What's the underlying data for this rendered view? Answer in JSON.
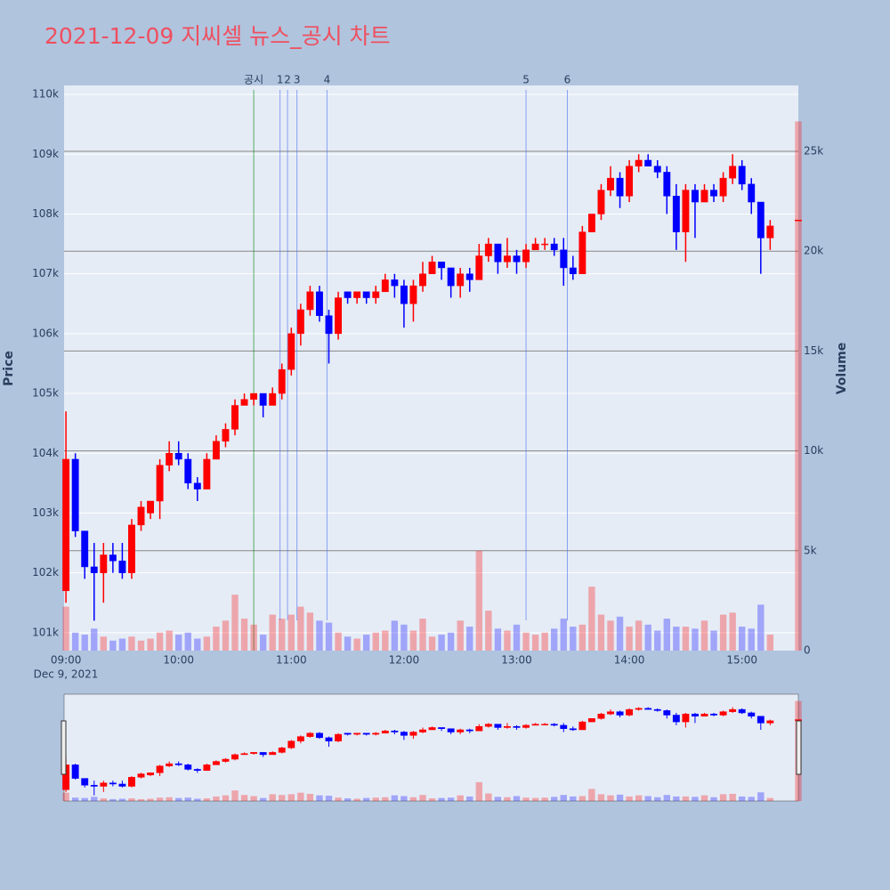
{
  "chart_data": {
    "type": "candlestick",
    "title": "2021-12-09 지씨셀 뉴스_공시 차트",
    "title_color": "#ef4f5f",
    "y_title": "Price",
    "y2_title": "Volume",
    "x_date_label": "Dec 9, 2021",
    "increasing_color": "#ff0000",
    "decreasing_color": "#0000ff",
    "grid": true,
    "x": [
      "09:00",
      "09:05",
      "09:10",
      "09:15",
      "09:20",
      "09:25",
      "09:30",
      "09:35",
      "09:40",
      "09:45",
      "09:50",
      "09:55",
      "10:00",
      "10:05",
      "10:10",
      "10:15",
      "10:20",
      "10:25",
      "10:30",
      "10:35",
      "10:40",
      "10:45",
      "10:50",
      "10:55",
      "11:00",
      "11:05",
      "11:10",
      "11:15",
      "11:20",
      "11:25",
      "11:30",
      "11:35",
      "11:40",
      "11:45",
      "11:50",
      "11:55",
      "12:00",
      "12:05",
      "12:10",
      "12:15",
      "12:20",
      "12:25",
      "12:30",
      "12:35",
      "12:40",
      "12:45",
      "12:50",
      "12:55",
      "13:00",
      "13:05",
      "13:10",
      "13:15",
      "13:20",
      "13:25",
      "13:30",
      "13:35",
      "13:40",
      "13:45",
      "13:50",
      "13:55",
      "14:00",
      "14:05",
      "14:10",
      "14:15",
      "14:20",
      "14:25",
      "14:30",
      "14:35",
      "14:40",
      "14:45",
      "14:50",
      "14:55",
      "15:00",
      "15:05",
      "15:10",
      "15:15",
      "15:30"
    ],
    "open": [
      101700,
      103900,
      102700,
      102100,
      102000,
      102300,
      102200,
      102000,
      102800,
      103000,
      103200,
      103800,
      104000,
      103900,
      103500,
      103400,
      103900,
      104200,
      104400,
      104800,
      104900,
      105000,
      104800,
      105000,
      105400,
      106000,
      106400,
      106700,
      106300,
      106000,
      106700,
      106600,
      106700,
      106600,
      106700,
      106900,
      106800,
      106500,
      106800,
      107000,
      107200,
      107100,
      106800,
      107000,
      106900,
      107300,
      107500,
      107200,
      107300,
      107200,
      107400,
      107500,
      107500,
      107400,
      107100,
      107000,
      107700,
      108000,
      108400,
      108600,
      108300,
      108800,
      108900,
      108800,
      108700,
      108300,
      107700,
      108400,
      108200,
      108400,
      108300,
      108600,
      108800,
      108500,
      108200,
      107600,
      107900
    ],
    "high": [
      104700,
      104000,
      102700,
      102500,
      102500,
      102500,
      102500,
      102900,
      103200,
      103200,
      103900,
      104200,
      104200,
      104000,
      103600,
      104000,
      104300,
      104500,
      104900,
      105000,
      105000,
      105000,
      105100,
      105500,
      106100,
      106500,
      106800,
      106800,
      106400,
      106700,
      106700,
      106700,
      106700,
      106800,
      107000,
      107000,
      106900,
      106900,
      107200,
      107300,
      107200,
      107100,
      107100,
      107100,
      107500,
      107600,
      107500,
      107600,
      107400,
      107500,
      107600,
      107600,
      107600,
      107600,
      107300,
      107800,
      108000,
      108500,
      108800,
      108700,
      108900,
      109000,
      109000,
      108900,
      108800,
      108500,
      108500,
      108500,
      108500,
      108500,
      108700,
      109000,
      108900,
      108600,
      108200,
      107900,
      107900
    ],
    "low": [
      101500,
      102600,
      101900,
      101200,
      101500,
      102000,
      101900,
      101900,
      102700,
      102900,
      102900,
      103700,
      103800,
      103400,
      103200,
      103400,
      103900,
      104100,
      104300,
      104800,
      104800,
      104600,
      104800,
      104900,
      105300,
      105800,
      106300,
      106200,
      105500,
      105900,
      106500,
      106500,
      106500,
      106500,
      106700,
      106600,
      106100,
      106200,
      106700,
      107000,
      106900,
      106600,
      106600,
      106700,
      106900,
      107200,
      107000,
      107100,
      107000,
      107100,
      107400,
      107400,
      107300,
      106800,
      106900,
      107000,
      107700,
      107900,
      108300,
      108100,
      108200,
      108700,
      108800,
      108600,
      108000,
      107400,
      107200,
      107600,
      108200,
      108200,
      108200,
      108500,
      108400,
      108000,
      107000,
      107400,
      107900
    ],
    "close": [
      103900,
      102700,
      102100,
      102000,
      102300,
      102200,
      102000,
      102800,
      103100,
      103200,
      103800,
      104000,
      103900,
      103500,
      103400,
      103900,
      104200,
      104400,
      104800,
      104900,
      105000,
      104800,
      105000,
      105400,
      106000,
      106400,
      106700,
      106300,
      106000,
      106600,
      106600,
      106700,
      106600,
      106700,
      106900,
      106800,
      106500,
      106800,
      107000,
      107200,
      107100,
      106800,
      107000,
      106900,
      107300,
      107500,
      107200,
      107300,
      107200,
      107400,
      107500,
      107500,
      107400,
      107100,
      107000,
      107700,
      108000,
      108400,
      108600,
      108300,
      108800,
      108900,
      108800,
      108700,
      108300,
      107700,
      108400,
      108200,
      108400,
      108300,
      108600,
      108800,
      108500,
      108200,
      107600,
      107800,
      107900
    ],
    "volume": [
      2200,
      900,
      800,
      1100,
      700,
      500,
      600,
      700,
      500,
      600,
      900,
      1000,
      800,
      900,
      600,
      700,
      1200,
      1500,
      2800,
      1600,
      1300,
      800,
      1800,
      1600,
      1800,
      2200,
      1900,
      1500,
      1400,
      900,
      700,
      600,
      800,
      900,
      1000,
      1500,
      1300,
      1000,
      1600,
      700,
      800,
      900,
      1500,
      1200,
      5000,
      2000,
      1100,
      1000,
      1300,
      900,
      800,
      900,
      1100,
      1600,
      1200,
      1300,
      3200,
      1800,
      1500,
      1700,
      1200,
      1500,
      1300,
      1000,
      1600,
      1200,
      1200,
      1100,
      1500,
      1000,
      1800,
      1900,
      1200,
      1100,
      2300,
      800,
      26500
    ],
    "xlim": [
      "08:59",
      "15:30"
    ],
    "xticks": [
      "09:00",
      "10:00",
      "11:00",
      "12:00",
      "13:00",
      "14:00",
      "15:00"
    ],
    "ylim": [
      100700,
      110150
    ],
    "yticks": [
      {
        "value": 101000,
        "label": "101k"
      },
      {
        "value": 102000,
        "label": "102k"
      },
      {
        "value": 103000,
        "label": "103k"
      },
      {
        "value": 104000,
        "label": "104k"
      },
      {
        "value": 105000,
        "label": "105k"
      },
      {
        "value": 106000,
        "label": "106k"
      },
      {
        "value": 107000,
        "label": "107k"
      },
      {
        "value": 108000,
        "label": "108k"
      },
      {
        "value": 109000,
        "label": "109k"
      },
      {
        "value": 110000,
        "label": "110k"
      }
    ],
    "y2lim": [
      0,
      28300
    ],
    "y2ticks": [
      0,
      {
        "value": 5000,
        "label": "5k"
      },
      {
        "value": 10000,
        "label": "10k"
      },
      {
        "value": 15000,
        "label": "15k"
      },
      {
        "value": 20000,
        "label": "20k"
      },
      {
        "value": 25000,
        "label": "25k"
      }
    ],
    "news": [
      {
        "x": "10:40",
        "label": "공시",
        "color": "green"
      },
      {
        "x": "10:54",
        "label": "1",
        "color": "#4a6cf0"
      },
      {
        "x": "10:58",
        "label": "2",
        "color": "#4a6cf0"
      },
      {
        "x": "11:03",
        "label": "3",
        "color": "#4a6cf0"
      },
      {
        "x": "11:19",
        "label": "4",
        "color": "#4a6cf0"
      },
      {
        "x": "13:05",
        "label": "5",
        "color": "#4a6cf0"
      },
      {
        "x": "13:27",
        "label": "6",
        "color": "#4a6cf0"
      }
    ]
  }
}
